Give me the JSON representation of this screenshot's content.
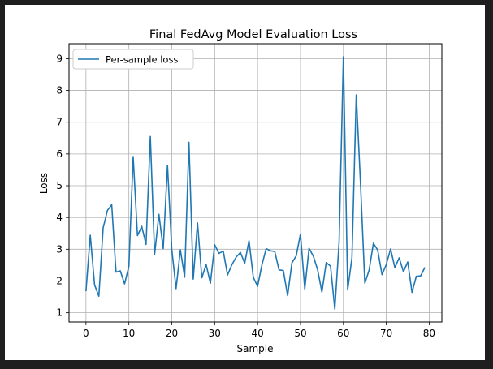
{
  "chart_data": {
    "type": "line",
    "title": "Final FedAvg Model Evaluation Loss",
    "xlabel": "Sample",
    "ylabel": "Loss",
    "xlim": [
      -3.95,
      82.95
    ],
    "ylim": [
      0.71,
      9.47
    ],
    "xticks": [
      0,
      10,
      20,
      30,
      40,
      50,
      60,
      70,
      80
    ],
    "yticks": [
      1,
      2,
      3,
      4,
      5,
      6,
      7,
      8,
      9
    ],
    "grid": true,
    "legend_position": "top-left",
    "series": [
      {
        "name": "Per-sample loss",
        "color": "#1f77b4",
        "x": [
          0,
          1,
          2,
          3,
          4,
          5,
          6,
          7,
          8,
          9,
          10,
          11,
          12,
          13,
          14,
          15,
          16,
          17,
          18,
          19,
          20,
          21,
          22,
          23,
          24,
          25,
          26,
          27,
          28,
          29,
          30,
          31,
          32,
          33,
          34,
          35,
          36,
          37,
          38,
          39,
          40,
          41,
          42,
          43,
          44,
          45,
          46,
          47,
          48,
          49,
          50,
          51,
          52,
          53,
          54,
          55,
          56,
          57,
          58,
          59,
          60,
          61,
          62,
          63,
          64,
          65,
          66,
          67,
          68,
          69,
          70,
          71,
          72,
          73,
          74,
          75,
          76,
          77,
          78,
          79
        ],
        "values": [
          1.68,
          3.44,
          1.88,
          1.52,
          3.67,
          4.22,
          4.4,
          2.28,
          2.32,
          1.91,
          2.46,
          5.92,
          3.43,
          3.72,
          3.15,
          6.55,
          2.84,
          4.1,
          3.02,
          5.64,
          3.0,
          1.76,
          2.98,
          2.12,
          6.37,
          2.06,
          3.83,
          2.1,
          2.52,
          1.93,
          3.14,
          2.87,
          2.94,
          2.19,
          2.51,
          2.75,
          2.9,
          2.56,
          3.27,
          2.12,
          1.83,
          2.5,
          3.02,
          2.95,
          2.93,
          2.35,
          2.33,
          1.54,
          2.57,
          2.79,
          3.48,
          1.75,
          3.03,
          2.78,
          2.35,
          1.65,
          2.58,
          2.47,
          1.11,
          3.22,
          9.06,
          1.72,
          2.73,
          7.86,
          5.04,
          1.93,
          2.34,
          3.19,
          2.97,
          2.2,
          2.52,
          3.01,
          2.42,
          2.73,
          2.29,
          2.6,
          1.64,
          2.15,
          2.16,
          2.43
        ]
      }
    ]
  }
}
